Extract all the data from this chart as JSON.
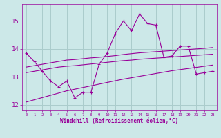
{
  "xlabel": "Windchill (Refroidissement éolien,°C)",
  "background_color": "#cce8e8",
  "grid_color": "#aacccc",
  "line_color": "#990099",
  "x_hours": [
    0,
    1,
    2,
    3,
    4,
    5,
    6,
    7,
    8,
    9,
    10,
    11,
    12,
    13,
    14,
    15,
    16,
    17,
    18,
    19,
    20,
    21,
    22,
    23
  ],
  "main_line": [
    13.85,
    13.55,
    13.2,
    12.85,
    12.65,
    12.85,
    12.25,
    12.45,
    12.45,
    13.45,
    13.85,
    14.55,
    15.0,
    14.65,
    15.25,
    14.9,
    14.85,
    13.7,
    13.75,
    14.1,
    14.1,
    13.1,
    13.15,
    13.2
  ],
  "reg_line1": [
    13.35,
    13.4,
    13.45,
    13.5,
    13.55,
    13.6,
    13.62,
    13.65,
    13.68,
    13.7,
    13.73,
    13.76,
    13.8,
    13.83,
    13.86,
    13.88,
    13.9,
    13.92,
    13.94,
    13.96,
    13.98,
    14.0,
    14.02,
    14.05
  ],
  "reg_line2": [
    13.15,
    13.2,
    13.25,
    13.3,
    13.35,
    13.38,
    13.4,
    13.43,
    13.46,
    13.49,
    13.52,
    13.55,
    13.58,
    13.6,
    13.63,
    13.65,
    13.67,
    13.69,
    13.71,
    13.73,
    13.75,
    13.77,
    13.79,
    13.81
  ],
  "reg_line3": [
    12.1,
    12.18,
    12.26,
    12.34,
    12.42,
    12.5,
    12.56,
    12.62,
    12.68,
    12.74,
    12.8,
    12.86,
    12.92,
    12.97,
    13.02,
    13.07,
    13.12,
    13.17,
    13.22,
    13.26,
    13.3,
    13.34,
    13.38,
    13.42
  ],
  "ylim": [
    11.8,
    15.6
  ],
  "xlim": [
    -0.5,
    23.5
  ],
  "yticks": [
    12,
    13,
    14,
    15
  ],
  "xticks": [
    0,
    1,
    2,
    3,
    4,
    5,
    6,
    7,
    8,
    9,
    10,
    11,
    12,
    13,
    14,
    15,
    16,
    17,
    18,
    19,
    20,
    21,
    22,
    23
  ]
}
